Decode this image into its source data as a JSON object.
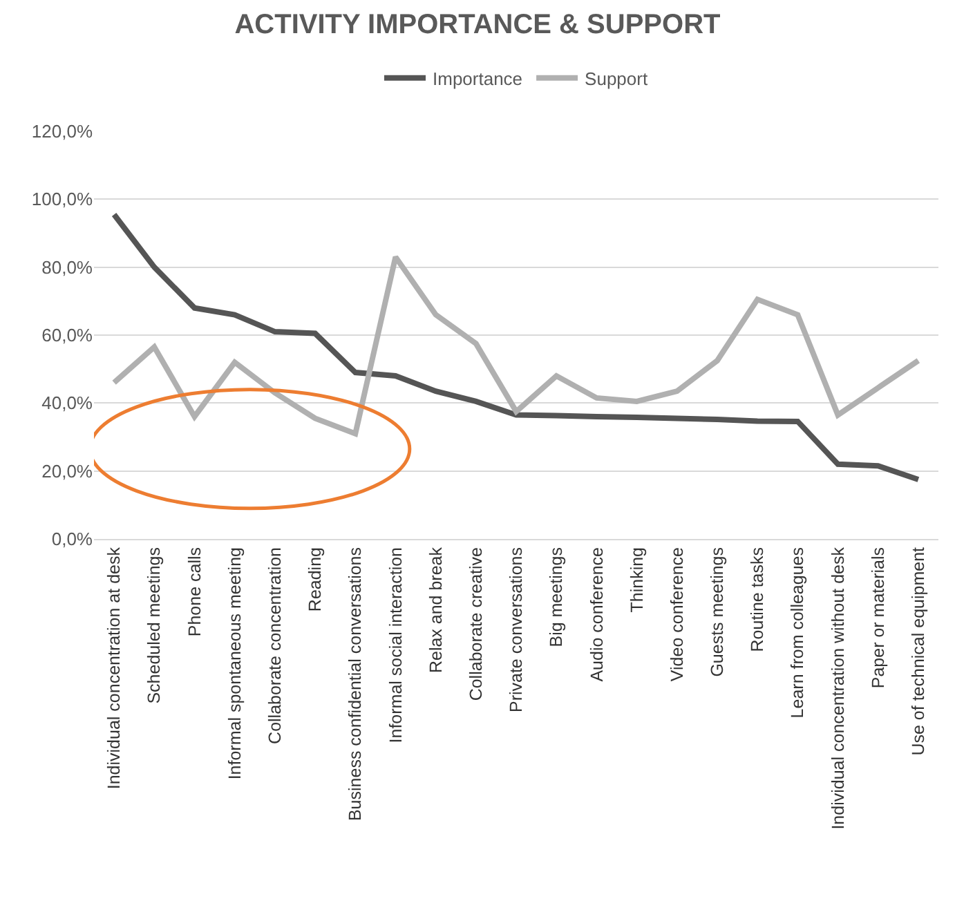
{
  "chart_data": {
    "type": "line",
    "title": "ACTIVITY IMPORTANCE & SUPPORT",
    "categories": [
      "Individual concentration at desk",
      "Scheduled meetings",
      "Phone calls",
      "Informal spontaneous meeting",
      "Collaborate concentration",
      "Reading",
      "Business confidential conversations",
      "Informal social interaction",
      "Relax and break",
      "Collaborate creative",
      "Private conversations",
      "Big meetings",
      "Audio conference",
      "Thinking",
      "Video conference",
      "Guests meetings",
      "Routine tasks",
      "Learn from colleagues",
      "Individual concentration without desk",
      "Paper or materials",
      "Use of technical equipment"
    ],
    "series": [
      {
        "name": "Importance",
        "color": "#555555",
        "values": [
          95.5,
          80,
          68,
          66,
          61,
          60.5,
          49,
          48,
          43.5,
          40.5,
          36.5,
          36.3,
          36,
          35.8,
          35.5,
          35.2,
          34.7,
          34.6,
          22,
          21.5,
          17.5
        ]
      },
      {
        "name": "Support",
        "color": "#b0b0b0",
        "values": [
          46,
          56.5,
          36,
          52,
          43,
          35.5,
          31,
          83,
          66,
          57.5,
          37.5,
          48,
          41.5,
          40.5,
          43.5,
          52.5,
          70.5,
          66,
          36.5,
          44.5,
          52.5
        ]
      }
    ],
    "ylim": [
      0,
      120
    ],
    "yticks": [
      {
        "value": 0,
        "label": "0,0%"
      },
      {
        "value": 20,
        "label": "20,0%"
      },
      {
        "value": 40,
        "label": "40,0%"
      },
      {
        "value": 60,
        "label": "60,0%"
      },
      {
        "value": 80,
        "label": "80,0%"
      },
      {
        "value": 100,
        "label": "100,0%"
      },
      {
        "value": 120,
        "label": "120,0%"
      }
    ],
    "grid": "y",
    "legend": "top",
    "line_style": "solid",
    "marker": "none"
  }
}
